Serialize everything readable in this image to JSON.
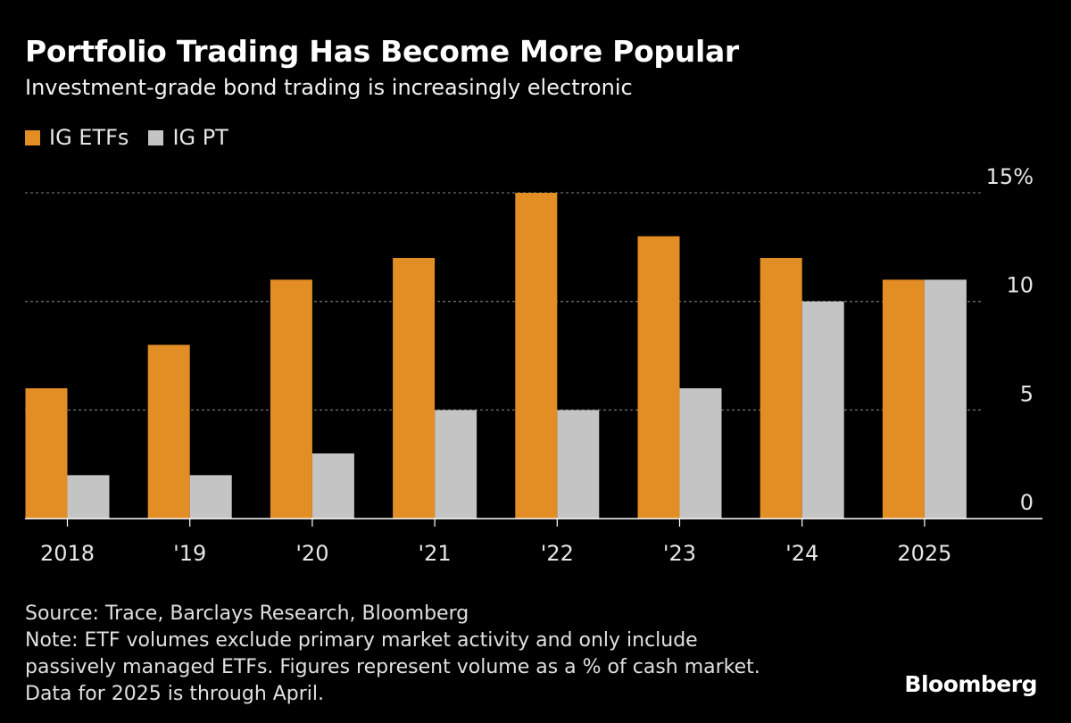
{
  "header": {
    "title": "Portfolio Trading Has Become More Popular",
    "subtitle": "Investment-grade bond trading is increasingly electronic"
  },
  "legend": [
    {
      "label": "IG ETFs",
      "color": "#e38d25"
    },
    {
      "label": "IG PT",
      "color": "#c4c4c4"
    }
  ],
  "chart_data": {
    "type": "bar",
    "title": "Portfolio Trading Has Become More Popular",
    "subtitle": "Investment-grade bond trading is increasingly electronic",
    "categories": [
      "2018",
      "'19",
      "'20",
      "'21",
      "'22",
      "'23",
      "'24",
      "2025"
    ],
    "series": [
      {
        "name": "IG ETFs",
        "color": "#e38d25",
        "values": [
          6,
          8,
          11,
          12,
          15,
          13,
          12,
          11
        ]
      },
      {
        "name": "IG PT",
        "color": "#c4c4c4",
        "values": [
          2,
          2,
          3,
          5,
          5,
          6,
          10,
          11
        ]
      }
    ],
    "ylim": [
      0,
      15
    ],
    "y_ticks": [
      0,
      5,
      10,
      15
    ],
    "y_tick_labels": [
      "0",
      "5",
      "10",
      "15%"
    ],
    "y_axis_side": "right",
    "grid": true,
    "legend_position": "top-left"
  },
  "footer": {
    "source": "Source: Trace, Barclays Research, Bloomberg",
    "note_lines": [
      "Note: ETF volumes exclude primary market activity and only include",
      "passively managed ETFs. Figures represent volume as a % of cash market.",
      "Data for 2025 is through April."
    ],
    "brand": "Bloomberg"
  }
}
